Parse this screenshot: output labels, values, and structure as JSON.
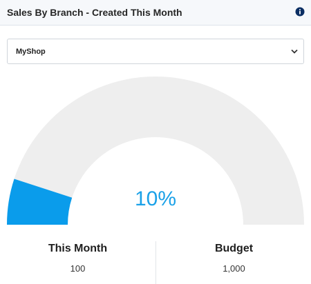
{
  "widget": {
    "title": "Sales By Branch - Created This Month",
    "info_icon": "info-circle-icon"
  },
  "branch_select": {
    "selected": "MyShop",
    "chevron_icon": "chevron-down-icon"
  },
  "gauge": {
    "percent_label": "10%",
    "fill_fraction": 0.1,
    "fill_color": "#0a9ceb",
    "track_color": "#eeeeee"
  },
  "stats": {
    "this_month": {
      "label": "This Month",
      "value": "100"
    },
    "budget": {
      "label": "Budget",
      "value": "1,000"
    }
  }
}
